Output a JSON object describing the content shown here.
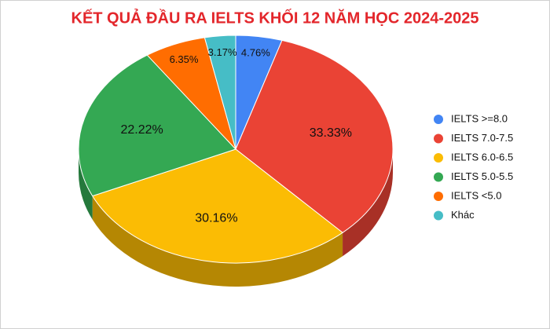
{
  "chart_data": {
    "type": "pie3d",
    "title": "KẾT QUẢ ĐẦU RA IELTS KHỐI 12 NĂM HỌC 2024-2025",
    "categories": [
      "IELTS >=8.0",
      "IELTS 7.0-7.5",
      "IELTS 6.0-6.5",
      "IELTS 5.0-5.5",
      "IELTS <5.0",
      "Khác"
    ],
    "values": [
      4.76,
      33.33,
      30.16,
      22.22,
      6.35,
      3.17
    ],
    "value_labels": [
      "4.76%",
      "33.33%",
      "30.16%",
      "22.22%",
      "6.35%",
      "3.17%"
    ],
    "colors": [
      "#4285f4",
      "#ea4335",
      "#fbbc04",
      "#34a853",
      "#ff6d01",
      "#46bdc6"
    ],
    "legend": "right"
  }
}
